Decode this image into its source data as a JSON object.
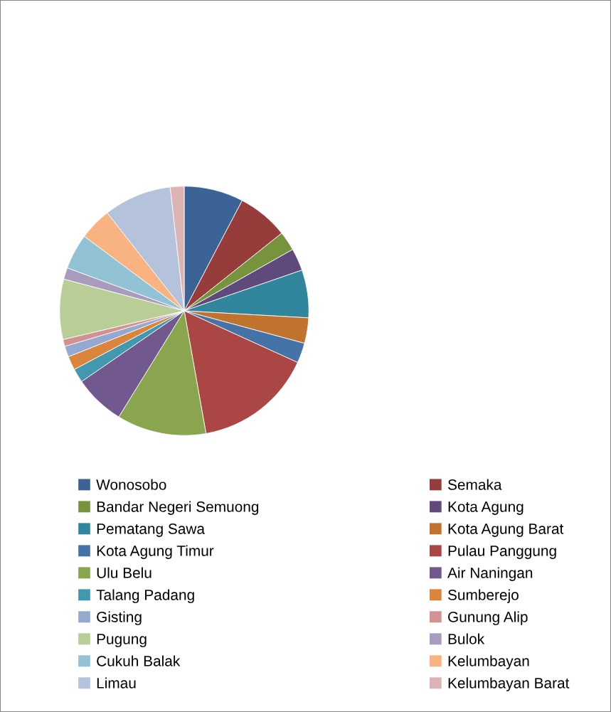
{
  "chart_data": {
    "type": "pie",
    "legend": "bottom",
    "categories": [
      "Wonosobo",
      "Semaka",
      "Bandar Negeri Semuong",
      "Kota Agung",
      "Pematang Sawa",
      "Kota Agung Barat",
      "Kota Agung Timur",
      "Pulau Panggung",
      "Ulu Belu",
      "Air Naningan",
      "Talang Padang",
      "Sumberejo",
      "Gisting",
      "Gunung Alip",
      "Pugung",
      "Bulok",
      "Cukuh Balak",
      "Kelumbayan",
      "Limau",
      "Kelumbayan Barat"
    ],
    "values": [
      7.7,
      6.6,
      2.5,
      2.9,
      6.2,
      3.3,
      2.6,
      15.4,
      11.6,
      6.6,
      1.8,
      1.8,
      1.4,
      0.9,
      7.8,
      1.5,
      4.6,
      4.2,
      8.8,
      1.8
    ],
    "colors": [
      "#3c6396",
      "#963c3a",
      "#77933c",
      "#5f4a7b",
      "#31859c",
      "#c0732f",
      "#4572a7",
      "#aa4643",
      "#89a54e",
      "#71588f",
      "#4198af",
      "#db843d",
      "#93a9cf",
      "#d19392",
      "#b9cd96",
      "#a99bbd",
      "#91c3d5",
      "#f9b381",
      "#b4c2dc",
      "#dcb4b4"
    ]
  }
}
